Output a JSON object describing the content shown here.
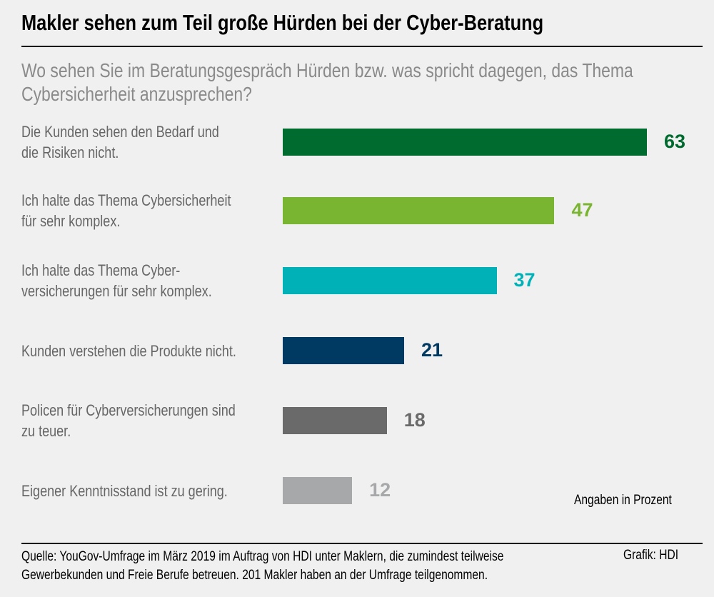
{
  "title": "Makler sehen zum Teil große Hürden bei der Cyber-Beratung",
  "subtitle_lines": [
    "Wo sehen Sie im Beratungsgespräch Hürden bzw. was spricht dagegen, das Thema",
    "Cybersicherheit anzusprechen?"
  ],
  "unit_note": "Angaben in Prozent",
  "source_lines": [
    "Quelle: YouGov-Umfrage im März 2019 im Auftrag von HDI unter Maklern, die zumindest teilweise",
    "Gewerbekunden und Freie Berufe betreuen. 201 Makler haben an der Umfrage teilgenommen."
  ],
  "credit": "Grafik: HDI",
  "chart_data": {
    "type": "bar",
    "orientation": "horizontal",
    "categories": [
      [
        "Die Kunden sehen den Bedarf und",
        "die Risiken nicht."
      ],
      [
        "Ich halte das Thema Cybersicherheit",
        "für sehr komplex."
      ],
      [
        "Ich halte das Thema Cyber-",
        "versicherungen für sehr komplex."
      ],
      [
        "Kunden verstehen die Produkte nicht."
      ],
      [
        "Policen für Cyberversicherungen sind",
        "zu teuer."
      ],
      [
        "Eigener Kenntnisstand ist zu gering."
      ]
    ],
    "values": [
      63,
      47,
      37,
      21,
      18,
      12
    ],
    "value_labels": [
      "63",
      "47",
      "37",
      "21",
      "18",
      "12"
    ],
    "colors": [
      "#006b2e",
      "#7ab532",
      "#00b1b8",
      "#003a62",
      "#6a6a6a",
      "#a6a8a9"
    ],
    "grid": false
  }
}
